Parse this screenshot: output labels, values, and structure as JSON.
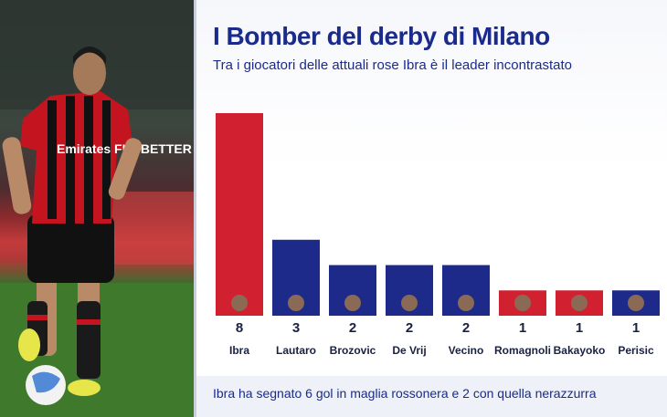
{
  "header": {
    "title": "I Bomber del derby di Milano",
    "subtitle": "Tra i giocatori delle attuali rose Ibra è il leader incontrastato"
  },
  "footer": {
    "note": "Ibra ha segnato 6 gol in maglia rossonera e 2 con quella nerazzurra"
  },
  "photo": {
    "shirt_sponsor": "Emirates FLY BETTER"
  },
  "colors": {
    "milan": "#d1202f",
    "inter": "#1d2a8a",
    "title": "#1a2b8c"
  },
  "chart_data": {
    "type": "bar",
    "title": "I Bomber del derby di Milano",
    "subtitle": "Tra i giocatori delle attuali rose Ibra è il leader incontrastato",
    "categories": [
      "Ibra",
      "Lautaro",
      "Brozovic",
      "De Vrij",
      "Vecino",
      "Romagnoli",
      "Bakayoko",
      "Perisic"
    ],
    "values": [
      8,
      3,
      2,
      2,
      2,
      1,
      1,
      1
    ],
    "club": [
      "milan",
      "inter",
      "inter",
      "inter",
      "inter",
      "milan",
      "milan",
      "inter"
    ],
    "ylim": [
      0,
      8
    ],
    "grid": false,
    "legend": "none",
    "xlabel": "",
    "ylabel": ""
  }
}
